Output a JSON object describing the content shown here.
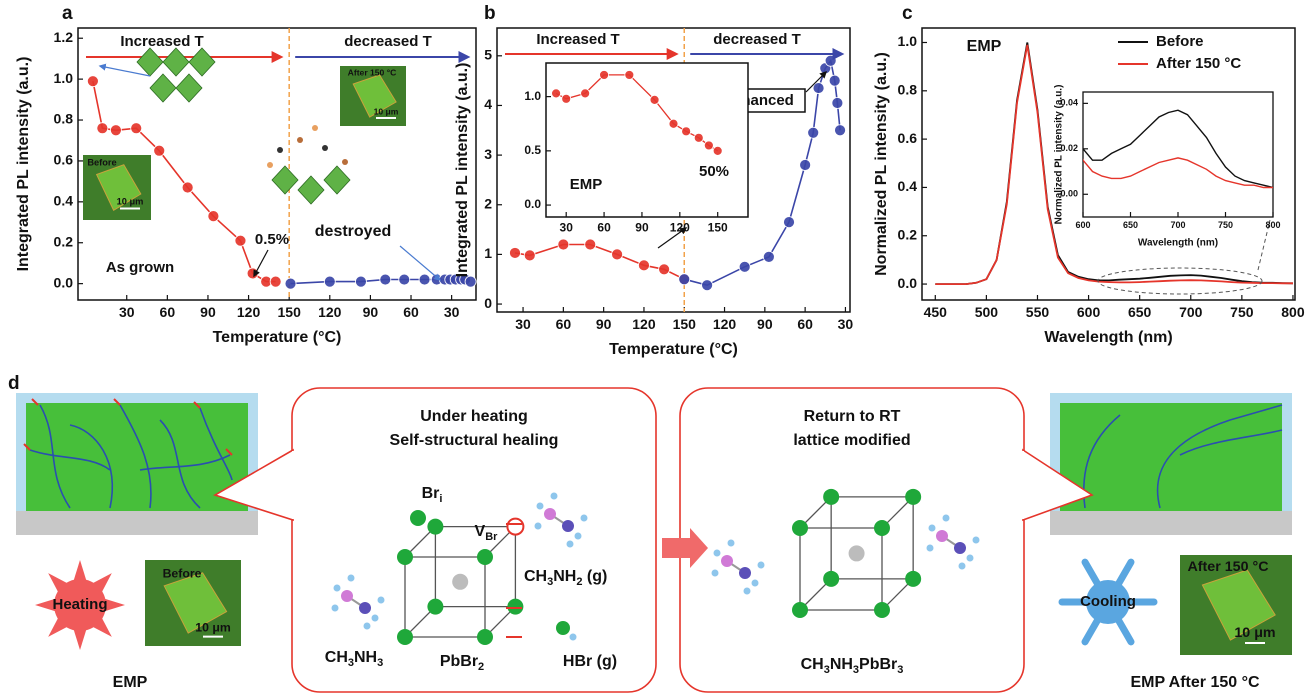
{
  "chart_data": [
    {
      "type": "line",
      "panel": "a",
      "xlabel": "Temperature (°C)",
      "ylabel": "Integrated PL intensity (a.u.)",
      "xlim": [
        -6,
        288
      ],
      "ylim": [
        -0.08,
        1.25
      ],
      "xticks": [
        30,
        60,
        90,
        120,
        150,
        {
          "value": 180,
          "label": "120"
        },
        {
          "value": 210,
          "label": "90"
        },
        {
          "value": 240,
          "label": "60"
        },
        {
          "value": 270,
          "label": "30"
        }
      ],
      "yticks": [
        {
          "value": 0,
          "label": "0.0"
        },
        0.2,
        0.4,
        0.6,
        0.8,
        {
          "value": 1,
          "label": "1.0"
        },
        1.2
      ],
      "markers": true,
      "divider": 150,
      "divider_color": "#f2a24a",
      "series": [
        {
          "color": "#e5352b",
          "x": [
            5,
            12,
            22,
            37,
            54,
            75,
            94,
            114,
            123,
            133,
            140
          ],
          "values": [
            0.99,
            0.76,
            0.75,
            0.76,
            0.65,
            0.47,
            0.33,
            0.21,
            0.05,
            0.01,
            0.01
          ]
        },
        {
          "color": "#3b46a8",
          "x": [
            151,
            180,
            203,
            221,
            235,
            250,
            259,
            265,
            269,
            273,
            277,
            280,
            284
          ],
          "values": [
            0.0,
            0.01,
            0.01,
            0.02,
            0.02,
            0.02,
            0.02,
            0.02,
            0.02,
            0.02,
            0.02,
            0.02,
            0.01
          ]
        }
      ],
      "annotations": [
        "Increased T",
        "decreased T",
        "0.5%",
        "destroyed",
        "As grown"
      ],
      "insets": [
        {
          "label": "Before",
          "scale": "10 μm"
        },
        {
          "label": "After 150 °C",
          "scale": "10 μm"
        }
      ]
    },
    {
      "type": "line",
      "panel": "b",
      "xlabel": "Temperature (°C)",
      "ylabel": "Integrated PL intensity (a.u.)",
      "xlim": [
        10.6,
        273.4
      ],
      "ylim": [
        -0.16,
        5.56
      ],
      "xticks": [
        30,
        60,
        90,
        120,
        150,
        {
          "value": 180,
          "label": "120"
        },
        {
          "value": 210,
          "label": "90"
        },
        {
          "value": 240,
          "label": "60"
        },
        {
          "value": 270,
          "label": "30"
        }
      ],
      "yticks": [
        0,
        1,
        2,
        3,
        4,
        5
      ],
      "markers": true,
      "divider": 150,
      "divider_color": "#f2a24a",
      "series": [
        {
          "color": "#e5352b",
          "x": [
            24,
            35,
            60,
            80,
            100,
            120,
            135,
            150
          ],
          "values": [
            1.03,
            0.98,
            1.2,
            1.2,
            1.0,
            0.78,
            0.7,
            0.5
          ]
        },
        {
          "color": "#3b46a8",
          "x": [
            150,
            167,
            195,
            213,
            228,
            240,
            246,
            250,
            255,
            259,
            262,
            264,
            266
          ],
          "values": [
            0.5,
            0.38,
            0.75,
            0.95,
            1.65,
            2.8,
            3.45,
            4.35,
            4.75,
            4.9,
            4.5,
            4.05,
            3.5
          ]
        }
      ],
      "annotations": [
        "Increased T",
        "decreased T",
        "Enhanced"
      ],
      "inset": {
        "title": "EMP",
        "xlim": [
          14,
          174
        ],
        "ylim": [
          -0.11,
          1.31
        ],
        "xticks": [
          30,
          60,
          90,
          120,
          150
        ],
        "yticks": [
          {
            "value": 0,
            "label": "0.0"
          },
          0.5,
          {
            "value": 1,
            "label": "1.0"
          }
        ],
        "markers": true,
        "series": [
          {
            "color": "#e5352b",
            "x": [
              22,
              30,
              45,
              60,
              80,
              100,
              115,
              125,
              135,
              143,
              150
            ],
            "values": [
              1.03,
              0.98,
              1.03,
              1.2,
              1.2,
              0.97,
              0.75,
              0.68,
              0.62,
              0.55,
              0.5
            ]
          }
        ],
        "annotations": [
          "50%"
        ]
      }
    },
    {
      "type": "line",
      "panel": "c",
      "xlabel": "Wavelength (nm)",
      "ylabel": "Normalized PL intensity (a.u.)",
      "xlim": [
        437,
        802
      ],
      "ylim": [
        -0.066,
        1.06
      ],
      "xticks": [
        450,
        500,
        550,
        600,
        650,
        700,
        750,
        800
      ],
      "yticks": [
        {
          "value": 0,
          "label": "0.0"
        },
        0.2,
        0.4,
        0.6,
        0.8,
        {
          "value": 1,
          "label": "1.0"
        }
      ],
      "legend": "upper right",
      "annotations": [
        "EMP"
      ],
      "x": [
        450,
        460,
        470,
        480,
        490,
        500,
        510,
        520,
        530,
        540,
        550,
        560,
        570,
        580,
        590,
        600,
        610,
        620,
        630,
        640,
        650,
        660,
        670,
        680,
        690,
        700,
        710,
        720,
        730,
        740,
        750,
        760,
        770,
        780,
        790,
        800
      ],
      "series": [
        {
          "name": "Before",
          "color": "#111111",
          "values": [
            0.0,
            0.0,
            0.0,
            0.0,
            0.005,
            0.02,
            0.1,
            0.34,
            0.76,
            1.0,
            0.72,
            0.32,
            0.12,
            0.05,
            0.03,
            0.02,
            0.015,
            0.015,
            0.018,
            0.02,
            0.022,
            0.026,
            0.03,
            0.034,
            0.036,
            0.037,
            0.035,
            0.03,
            0.025,
            0.018,
            0.012,
            0.008,
            0.006,
            0.005,
            0.004,
            0.003
          ]
        },
        {
          "name": "After 150 °C",
          "color": "#e5352b",
          "values": [
            0.0,
            0.0,
            0.0,
            0.0,
            0.005,
            0.02,
            0.1,
            0.33,
            0.75,
            0.99,
            0.71,
            0.31,
            0.11,
            0.045,
            0.025,
            0.015,
            0.01,
            0.008,
            0.007,
            0.007,
            0.008,
            0.01,
            0.012,
            0.014,
            0.015,
            0.016,
            0.015,
            0.013,
            0.011,
            0.008,
            0.006,
            0.005,
            0.004,
            0.004,
            0.003,
            0.003
          ]
        }
      ],
      "inset": {
        "xlabel": "Wavelength (nm)",
        "ylabel": "Normalized PL intensity (a.u.)",
        "xlim": [
          600,
          800
        ],
        "ylim": [
          -0.01,
          0.045
        ],
        "xticks": [
          600,
          650,
          700,
          750,
          800
        ],
        "yticks": [
          {
            "value": 0,
            "label": "0.00"
          },
          {
            "value": 0.02,
            "label": "0.02"
          },
          {
            "value": 0.04,
            "label": "0.04"
          }
        ]
      }
    }
  ],
  "panel_d": {
    "label": "d",
    "left": {
      "caption": "EMP",
      "badge": "Heating",
      "image_label": "Before",
      "scale": "10 μm"
    },
    "heating_box": {
      "title": [
        "Under heating",
        "Self-structural healing"
      ],
      "br_i": [
        "Br",
        "i"
      ],
      "v_br": [
        "V",
        "Br"
      ],
      "ch3nh2": [
        "CH",
        "3",
        "NH",
        "2",
        " (g)"
      ],
      "ch3nh3": [
        "CH",
        "3",
        "NH",
        "3"
      ],
      "pbbr2": [
        "PbBr",
        "2"
      ],
      "hbr": [
        "HBr (g)"
      ]
    },
    "cooling_box": {
      "title": [
        "Return to RT",
        "lattice modified"
      ],
      "product": [
        "CH",
        "3",
        "NH",
        "3",
        "PbBr",
        "3"
      ]
    },
    "right": {
      "caption": "EMP After 150 °C",
      "badge": "Cooling",
      "image_label": "After 150 °C",
      "scale": "10 μm"
    }
  }
}
